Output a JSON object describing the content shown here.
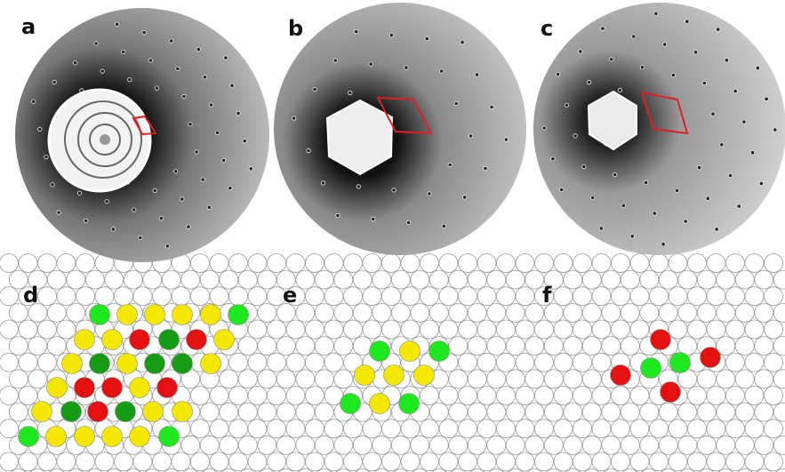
{
  "panels": {
    "a": "a",
    "b": "b",
    "c": "c",
    "d": "d",
    "e": "e",
    "f": "f"
  }
}
